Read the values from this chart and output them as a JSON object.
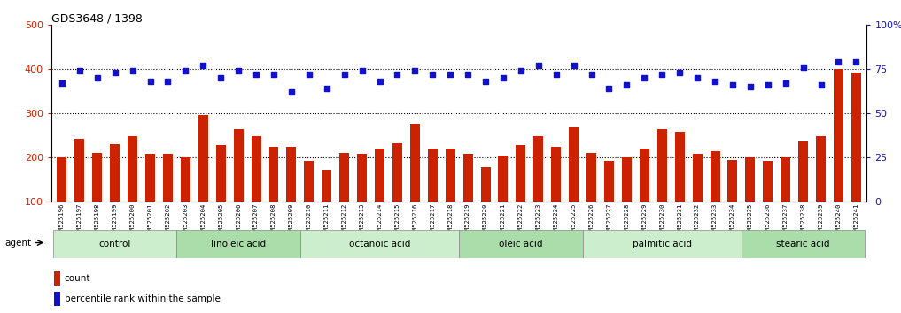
{
  "title": "GDS3648 / 1398",
  "samples": [
    "GSM525196",
    "GSM525197",
    "GSM525198",
    "GSM525199",
    "GSM525200",
    "GSM525201",
    "GSM525202",
    "GSM525203",
    "GSM525204",
    "GSM525205",
    "GSM525206",
    "GSM525207",
    "GSM525208",
    "GSM525209",
    "GSM525210",
    "GSM525211",
    "GSM525212",
    "GSM525213",
    "GSM525214",
    "GSM525215",
    "GSM525216",
    "GSM525217",
    "GSM525218",
    "GSM525219",
    "GSM525220",
    "GSM525221",
    "GSM525222",
    "GSM525223",
    "GSM525224",
    "GSM525225",
    "GSM525226",
    "GSM525227",
    "GSM525228",
    "GSM525229",
    "GSM525230",
    "GSM525231",
    "GSM525232",
    "GSM525233",
    "GSM525234",
    "GSM525235",
    "GSM525236",
    "GSM525237",
    "GSM525238",
    "GSM525239",
    "GSM525240",
    "GSM525241"
  ],
  "counts": [
    200,
    243,
    210,
    230,
    248,
    208,
    208,
    200,
    297,
    228,
    265,
    248,
    224,
    225,
    192,
    172,
    210,
    208,
    220,
    232,
    276,
    220,
    220,
    208,
    178,
    205,
    229,
    248,
    225,
    268,
    210,
    193,
    200,
    220,
    265,
    258,
    208,
    215,
    195,
    200,
    193,
    200,
    237,
    248,
    400,
    393
  ],
  "percentiles": [
    67,
    74,
    70,
    73,
    74,
    68,
    68,
    74,
    77,
    70,
    74,
    72,
    72,
    62,
    72,
    64,
    72,
    74,
    68,
    72,
    74,
    72,
    72,
    72,
    68,
    70,
    74,
    77,
    72,
    77,
    72,
    64,
    66,
    70,
    72,
    73,
    70,
    68,
    66,
    65,
    66,
    67,
    76,
    66,
    79,
    79
  ],
  "groups": [
    {
      "name": "control",
      "start": 0,
      "end": 6
    },
    {
      "name": "linoleic acid",
      "start": 7,
      "end": 13
    },
    {
      "name": "octanoic acid",
      "start": 14,
      "end": 22
    },
    {
      "name": "oleic acid",
      "start": 23,
      "end": 29
    },
    {
      "name": "palmitic acid",
      "start": 30,
      "end": 38
    },
    {
      "name": "stearic acid",
      "start": 39,
      "end": 45
    }
  ],
  "bar_color": "#cc2200",
  "dot_color": "#1111cc",
  "group_colors": [
    "#cceecc",
    "#aaddaa"
  ],
  "ylim_left": [
    100,
    500
  ],
  "ylim_right": [
    0,
    100
  ],
  "yticks_left": [
    100,
    200,
    300,
    400,
    500
  ],
  "yticks_right": [
    0,
    25,
    50,
    75,
    100
  ],
  "legend_count_label": "count",
  "legend_pct_label": "percentile rank within the sample"
}
